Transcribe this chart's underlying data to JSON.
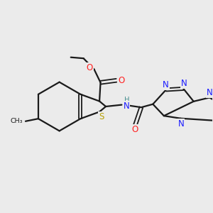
{
  "background_color": "#ebebeb",
  "bond_color": "#1a1a1a",
  "S_color": "#b8a000",
  "N_color": "#1a1aff",
  "O_color": "#ff2020",
  "H_color": "#4a9090",
  "figsize": [
    3.0,
    3.0
  ],
  "dpi": 100,
  "xlim": [
    0,
    10
  ],
  "ylim": [
    0,
    10
  ]
}
